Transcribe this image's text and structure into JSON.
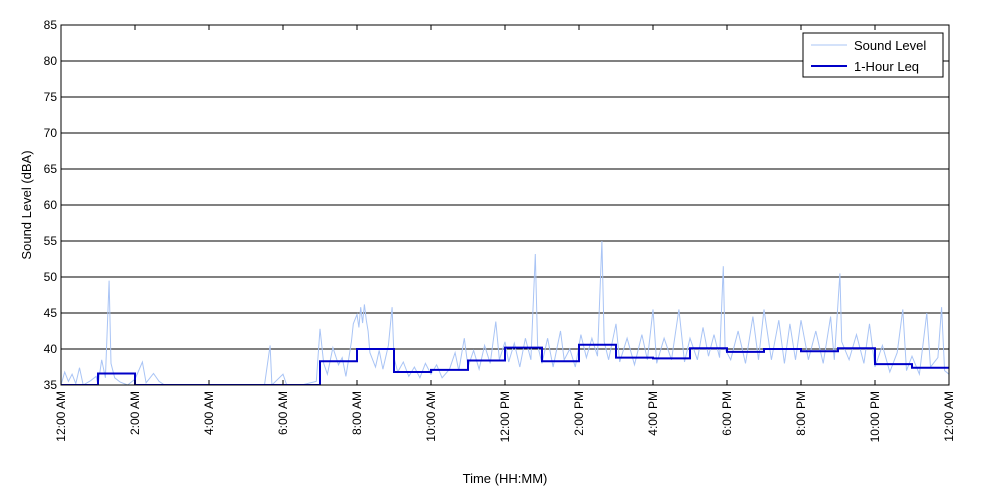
{
  "chart_data": {
    "type": "line",
    "title": "",
    "xlabel": "Time (HH:MM)",
    "ylabel": "Sound Level (dBA)",
    "ylim": [
      35,
      85
    ],
    "xlim": [
      0,
      24
    ],
    "y_ticks": [
      35,
      40,
      45,
      50,
      55,
      60,
      65,
      70,
      75,
      80,
      85
    ],
    "x_ticks": [
      {
        "hour": 0,
        "label": "12:00 AM"
      },
      {
        "hour": 2,
        "label": "2:00 AM"
      },
      {
        "hour": 4,
        "label": "4:00 AM"
      },
      {
        "hour": 6,
        "label": "6:00 AM"
      },
      {
        "hour": 8,
        "label": "8:00 AM"
      },
      {
        "hour": 10,
        "label": "10:00 AM"
      },
      {
        "hour": 12,
        "label": "12:00 PM"
      },
      {
        "hour": 14,
        "label": "2:00 PM"
      },
      {
        "hour": 16,
        "label": "4:00 PM"
      },
      {
        "hour": 18,
        "label": "6:00 PM"
      },
      {
        "hour": 20,
        "label": "8:00 PM"
      },
      {
        "hour": 22,
        "label": "10:00 PM"
      },
      {
        "hour": 24,
        "label": "12:00 AM"
      }
    ],
    "grid": "horizontal",
    "legend_position": "top-right",
    "series": [
      {
        "name": "Sound Level",
        "color": "#a9c4f5",
        "style": "thin-line",
        "points": [
          [
            0.0,
            35.0
          ],
          [
            0.1,
            36.8
          ],
          [
            0.2,
            35.5
          ],
          [
            0.3,
            36.5
          ],
          [
            0.4,
            35.2
          ],
          [
            0.5,
            37.4
          ],
          [
            0.6,
            35.0
          ],
          [
            0.8,
            35.6
          ],
          [
            0.95,
            36.2
          ],
          [
            1.0,
            35.0
          ],
          [
            1.1,
            38.5
          ],
          [
            1.2,
            36.0
          ],
          [
            1.3,
            49.5
          ],
          [
            1.35,
            38.0
          ],
          [
            1.45,
            36.0
          ],
          [
            1.6,
            35.4
          ],
          [
            1.8,
            35.0
          ],
          [
            2.0,
            35.8
          ],
          [
            2.2,
            38.2
          ],
          [
            2.3,
            35.3
          ],
          [
            2.5,
            36.6
          ],
          [
            2.65,
            35.5
          ],
          [
            2.8,
            35.0
          ],
          [
            5.5,
            35.0
          ],
          [
            5.65,
            40.5
          ],
          [
            5.7,
            35.0
          ],
          [
            6.0,
            36.5
          ],
          [
            6.1,
            35.0
          ],
          [
            6.5,
            35.0
          ],
          [
            6.9,
            35.5
          ],
          [
            7.0,
            42.8
          ],
          [
            7.1,
            38.0
          ],
          [
            7.2,
            36.5
          ],
          [
            7.35,
            40.2
          ],
          [
            7.5,
            37.8
          ],
          [
            7.6,
            38.8
          ],
          [
            7.7,
            36.2
          ],
          [
            7.85,
            41.0
          ],
          [
            7.9,
            43.5
          ],
          [
            8.0,
            44.8
          ],
          [
            8.05,
            43.0
          ],
          [
            8.1,
            45.8
          ],
          [
            8.15,
            43.6
          ],
          [
            8.2,
            46.2
          ],
          [
            8.25,
            44.0
          ],
          [
            8.3,
            42.5
          ],
          [
            8.35,
            39.5
          ],
          [
            8.5,
            37.5
          ],
          [
            8.6,
            39.8
          ],
          [
            8.7,
            37.2
          ],
          [
            8.85,
            40.5
          ],
          [
            8.95,
            45.8
          ],
          [
            9.0,
            38.8
          ],
          [
            9.1,
            36.8
          ],
          [
            9.25,
            38.2
          ],
          [
            9.4,
            36.2
          ],
          [
            9.55,
            37.5
          ],
          [
            9.7,
            36.0
          ],
          [
            9.85,
            38.0
          ],
          [
            10.0,
            36.5
          ],
          [
            10.15,
            37.8
          ],
          [
            10.3,
            36.0
          ],
          [
            10.5,
            37.2
          ],
          [
            10.65,
            39.5
          ],
          [
            10.75,
            37.0
          ],
          [
            10.9,
            41.5
          ],
          [
            11.0,
            37.5
          ],
          [
            11.15,
            39.8
          ],
          [
            11.3,
            37.2
          ],
          [
            11.45,
            40.5
          ],
          [
            11.6,
            38.0
          ],
          [
            11.75,
            43.8
          ],
          [
            11.85,
            38.5
          ],
          [
            12.0,
            41.0
          ],
          [
            12.1,
            38.2
          ],
          [
            12.25,
            40.8
          ],
          [
            12.4,
            37.5
          ],
          [
            12.55,
            41.5
          ],
          [
            12.7,
            38.5
          ],
          [
            12.82,
            53.2
          ],
          [
            12.88,
            40.5
          ],
          [
            13.0,
            38.0
          ],
          [
            13.15,
            41.5
          ],
          [
            13.3,
            37.5
          ],
          [
            13.5,
            42.5
          ],
          [
            13.6,
            38.5
          ],
          [
            13.75,
            40.0
          ],
          [
            13.9,
            37.5
          ],
          [
            14.05,
            42.0
          ],
          [
            14.2,
            38.8
          ],
          [
            14.35,
            41.5
          ],
          [
            14.5,
            39.0
          ],
          [
            14.62,
            55.0
          ],
          [
            14.68,
            41.0
          ],
          [
            14.8,
            38.5
          ],
          [
            15.0,
            43.5
          ],
          [
            15.1,
            38.2
          ],
          [
            15.3,
            41.5
          ],
          [
            15.5,
            37.8
          ],
          [
            15.7,
            42.0
          ],
          [
            15.85,
            38.5
          ],
          [
            16.0,
            45.5
          ],
          [
            16.1,
            38.0
          ],
          [
            16.3,
            41.5
          ],
          [
            16.5,
            38.5
          ],
          [
            16.7,
            45.5
          ],
          [
            16.85,
            38.2
          ],
          [
            17.0,
            41.5
          ],
          [
            17.2,
            38.5
          ],
          [
            17.35,
            43.0
          ],
          [
            17.5,
            39.0
          ],
          [
            17.65,
            42.0
          ],
          [
            17.8,
            38.8
          ],
          [
            17.9,
            51.5
          ],
          [
            17.95,
            40.0
          ],
          [
            18.1,
            38.5
          ],
          [
            18.3,
            42.5
          ],
          [
            18.5,
            38.0
          ],
          [
            18.7,
            44.5
          ],
          [
            18.85,
            38.5
          ],
          [
            19.0,
            45.5
          ],
          [
            19.2,
            38.5
          ],
          [
            19.4,
            44.0
          ],
          [
            19.55,
            38.0
          ],
          [
            19.7,
            43.5
          ],
          [
            19.85,
            38.5
          ],
          [
            20.0,
            44.0
          ],
          [
            20.2,
            38.5
          ],
          [
            20.4,
            42.5
          ],
          [
            20.6,
            38.0
          ],
          [
            20.8,
            44.5
          ],
          [
            20.9,
            38.5
          ],
          [
            21.05,
            50.5
          ],
          [
            21.1,
            41.0
          ],
          [
            21.3,
            38.5
          ],
          [
            21.5,
            42.0
          ],
          [
            21.7,
            38.0
          ],
          [
            21.85,
            43.5
          ],
          [
            22.0,
            37.5
          ],
          [
            22.2,
            40.5
          ],
          [
            22.4,
            36.8
          ],
          [
            22.6,
            39.5
          ],
          [
            22.75,
            45.5
          ],
          [
            22.85,
            37.0
          ],
          [
            23.0,
            39.0
          ],
          [
            23.2,
            36.5
          ],
          [
            23.4,
            45.0
          ],
          [
            23.5,
            37.5
          ],
          [
            23.7,
            38.8
          ],
          [
            23.8,
            45.8
          ],
          [
            23.88,
            37.0
          ],
          [
            24.0,
            36.5
          ]
        ]
      },
      {
        "name": "1-Hour Leq",
        "color": "#0000c8",
        "style": "step",
        "intervals": [
          {
            "start": 0,
            "end": 1,
            "value": 35.0
          },
          {
            "start": 1,
            "end": 2,
            "value": 36.6
          },
          {
            "start": 2,
            "end": 7,
            "value": 35.0
          },
          {
            "start": 7,
            "end": 8,
            "value": 38.3
          },
          {
            "start": 8,
            "end": 9,
            "value": 40.0
          },
          {
            "start": 9,
            "end": 10,
            "value": 36.8
          },
          {
            "start": 10,
            "end": 11,
            "value": 37.1
          },
          {
            "start": 11,
            "end": 12,
            "value": 38.4
          },
          {
            "start": 12,
            "end": 13,
            "value": 40.2
          },
          {
            "start": 13,
            "end": 14,
            "value": 38.3
          },
          {
            "start": 14,
            "end": 15,
            "value": 40.6
          },
          {
            "start": 15,
            "end": 16,
            "value": 38.8
          },
          {
            "start": 16,
            "end": 17,
            "value": 38.7
          },
          {
            "start": 17,
            "end": 18,
            "value": 40.1
          },
          {
            "start": 18,
            "end": 19,
            "value": 39.6
          },
          {
            "start": 19,
            "end": 20,
            "value": 40.0
          },
          {
            "start": 20,
            "end": 21,
            "value": 39.7
          },
          {
            "start": 21,
            "end": 22,
            "value": 40.1
          },
          {
            "start": 22,
            "end": 23,
            "value": 37.9
          },
          {
            "start": 23,
            "end": 24,
            "value": 37.4
          }
        ]
      }
    ]
  }
}
